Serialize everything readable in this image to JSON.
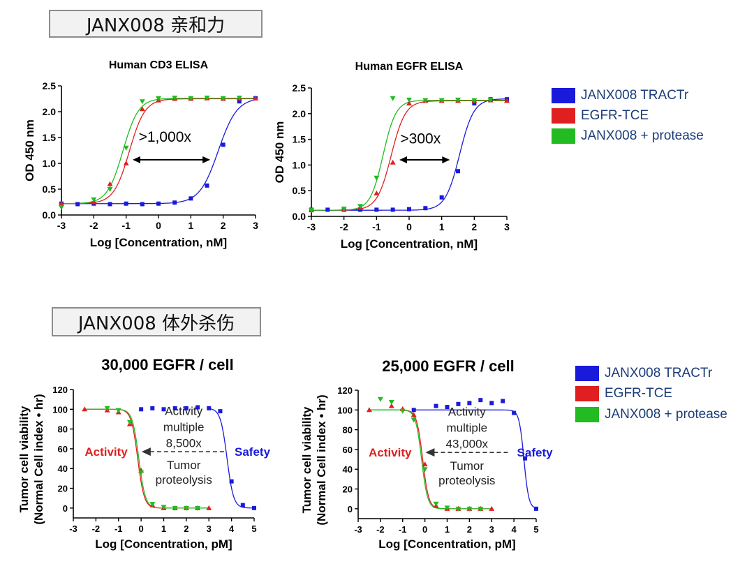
{
  "section1_title": "JANX008 亲和力",
  "section2_title": "JANX008 体外杀伤",
  "colors": {
    "tractr": "#1a1adb",
    "tce": "#e02020",
    "protease": "#22bb22"
  },
  "legend_top": [
    "JANX008 TRACTr",
    "EGFR-TCE",
    "JANX008 + protease"
  ],
  "legend_bottom": [
    "JANX008 TRACTr",
    "EGFR-TCE",
    "JANX008 + protease"
  ],
  "chart_data": [
    {
      "type": "scatter",
      "title": "Human CD3 ELISA",
      "xlabel": "Log [Concentration, nM]",
      "ylabel": "OD 450 nm",
      "xlim": [
        -3,
        3
      ],
      "ylim": [
        0,
        2.5
      ],
      "xticks": [
        "-3",
        "-2",
        "-1",
        "0",
        "1",
        "2",
        "3"
      ],
      "yticks": [
        "0.0",
        "0.5",
        "1.0",
        "1.5",
        "2.0",
        "2.5"
      ],
      "annotation": ">1,000x",
      "series": [
        {
          "name": "JANX008 TRACTr",
          "marker": "square",
          "x": [
            -3,
            -2.5,
            -2,
            -1.5,
            -1,
            -0.5,
            0,
            0.5,
            1,
            1.5,
            2,
            2.5,
            3
          ],
          "y": [
            0.22,
            0.21,
            0.22,
            0.21,
            0.22,
            0.21,
            0.22,
            0.24,
            0.32,
            0.57,
            1.36,
            2.2,
            2.26
          ],
          "fit": {
            "bottom": 0.22,
            "top": 2.27,
            "ec50": 1.85,
            "hill": 1.5
          }
        },
        {
          "name": "EGFR-TCE",
          "marker": "triangle-up",
          "x": [
            -3,
            -2,
            -1.5,
            -1,
            -0.5,
            0,
            0.5,
            1,
            1.5,
            2,
            2.5,
            3
          ],
          "y": [
            0.22,
            0.25,
            0.6,
            1.0,
            2.05,
            2.22,
            2.25,
            2.25,
            2.26,
            2.25,
            2.26,
            2.26
          ],
          "fit": {
            "bottom": 0.22,
            "top": 2.25,
            "ec50": -0.9,
            "hill": 1.8
          }
        },
        {
          "name": "JANX008 + protease",
          "marker": "triangle-down",
          "x": [
            -3,
            -2,
            -1.5,
            -1,
            -0.5,
            0,
            0.5,
            1,
            1.5,
            2,
            2.5
          ],
          "y": [
            0.15,
            0.3,
            0.5,
            1.3,
            2.2,
            2.26,
            2.27,
            2.26,
            2.27,
            2.26,
            2.27
          ],
          "fit": {
            "bottom": 0.22,
            "top": 2.26,
            "ec50": -1.1,
            "hill": 1.8
          }
        }
      ]
    },
    {
      "type": "scatter",
      "title": "Human EGFR ELISA",
      "xlabel": "Log [Concentration, nM]",
      "ylabel": "OD 450 nm",
      "xlim": [
        -3,
        3
      ],
      "ylim": [
        0,
        2.5
      ],
      "xticks": [
        "-3",
        "-2",
        "-1",
        "0",
        "1",
        "2",
        "3"
      ],
      "yticks": [
        "0.0",
        "0.5",
        "1.0",
        "1.5",
        "2.0",
        "2.5"
      ],
      "annotation": ">300x",
      "series": [
        {
          "name": "JANX008 TRACTr",
          "marker": "square",
          "x": [
            -3,
            -2.5,
            -2,
            -1.5,
            -1,
            -0.5,
            0,
            0.5,
            1,
            1.5,
            2,
            2.5,
            3
          ],
          "y": [
            0.13,
            0.13,
            0.13,
            0.13,
            0.13,
            0.13,
            0.14,
            0.16,
            0.37,
            0.88,
            2.2,
            2.28,
            2.28
          ],
          "fit": {
            "bottom": 0.12,
            "top": 2.29,
            "ec50": 1.55,
            "hill": 2.0
          }
        },
        {
          "name": "EGFR-TCE",
          "marker": "triangle-up",
          "x": [
            -3,
            -2,
            -1.5,
            -1,
            -0.5,
            0,
            0.5,
            1,
            1.5,
            2,
            2.5,
            3
          ],
          "y": [
            0.12,
            0.14,
            0.17,
            0.45,
            1.05,
            2.2,
            2.25,
            2.25,
            2.25,
            2.25,
            2.26,
            2.25
          ],
          "fit": {
            "bottom": 0.12,
            "top": 2.25,
            "ec50": -0.55,
            "hill": 2.0
          }
        },
        {
          "name": "JANX008 + protease",
          "marker": "triangle-down",
          "x": [
            -3,
            -2,
            -1.5,
            -1,
            -0.5,
            0,
            0.5,
            1,
            1.5,
            2,
            2.5
          ],
          "y": [
            0.12,
            0.15,
            0.2,
            0.75,
            2.3,
            2.27,
            2.26,
            2.26,
            2.27,
            2.26,
            2.27
          ],
          "fit": {
            "bottom": 0.12,
            "top": 2.26,
            "ec50": -0.8,
            "hill": 2.2
          }
        }
      ]
    },
    {
      "type": "scatter",
      "title": "30,000 EGFR / cell",
      "xlabel": "Log [Concentration, pM]",
      "ylabel_lines": [
        "Tumor cell viability",
        "(Normal Cell index • hr)"
      ],
      "xlim": [
        -3,
        5
      ],
      "ylim": [
        -10,
        120
      ],
      "xticks": [
        "-3",
        "-2",
        "-1",
        "0",
        "1",
        "2",
        "3",
        "4",
        "5"
      ],
      "yticks": [
        "0",
        "20",
        "40",
        "60",
        "80",
        "100",
        "120"
      ],
      "annotation_lines": [
        "Activity",
        "multiple",
        "8,500x"
      ],
      "activity_label": "Activity",
      "safety_label": "Safety",
      "proteolysis_lines": [
        "Tumor",
        "proteolysis"
      ],
      "series": [
        {
          "name": "JANX008 TRACTr",
          "marker": "square",
          "x": [
            0,
            0.5,
            1,
            1.5,
            2,
            2.5,
            3,
            3.5,
            4,
            4.5,
            5
          ],
          "y": [
            100,
            101,
            100,
            101,
            101,
            102,
            101,
            98,
            27,
            3,
            0
          ],
          "fit": {
            "bottom": 0,
            "top": 101,
            "ec50": 3.8,
            "hill": 3.0,
            "xmin": 3
          }
        },
        {
          "name": "EGFR-TCE",
          "marker": "triangle-up",
          "x": [
            -2.5,
            -1.5,
            -1,
            -0.5,
            0,
            0.5,
            1,
            1.5,
            2,
            2.5,
            3
          ],
          "y": [
            100,
            99,
            97,
            85,
            38,
            3,
            0,
            0,
            0,
            0,
            0
          ],
          "fit": {
            "bottom": 0,
            "top": 100,
            "ec50": -0.15,
            "hill": 3.0,
            "xmin": -2.5,
            "xmax": 3
          }
        },
        {
          "name": "JANX008 + protease",
          "marker": "triangle-down",
          "x": [
            -1.5,
            -1,
            -0.5,
            0,
            0.5,
            1,
            1.5,
            2,
            2.5
          ],
          "y": [
            101,
            99,
            87,
            36,
            4,
            1,
            0,
            0,
            0
          ],
          "fit": {
            "bottom": 0,
            "top": 100,
            "ec50": -0.1,
            "hill": 3.0,
            "xmin": -2.5,
            "xmax": 3
          }
        }
      ]
    },
    {
      "type": "scatter",
      "title": "25,000 EGFR / cell",
      "xlabel": "Log [Concentration, pM]",
      "ylabel_lines": [
        "Tumor cell viability",
        "(Normal Cell index • hr)"
      ],
      "xlim": [
        -3,
        5
      ],
      "ylim": [
        -10,
        120
      ],
      "xticks": [
        "-3",
        "-2",
        "-1",
        "0",
        "1",
        "2",
        "3",
        "4",
        "5"
      ],
      "yticks": [
        "0",
        "20",
        "40",
        "60",
        "80",
        "100",
        "120"
      ],
      "annotation_lines": [
        "Activity",
        "multiple",
        "43,000x"
      ],
      "activity_label": "Activity",
      "safety_label": "Safety",
      "proteolysis_lines": [
        "Tumor",
        "proteolysis"
      ],
      "series": [
        {
          "name": "JANX008 TRACTr",
          "marker": "square",
          "x": [
            -0.5,
            0.5,
            1,
            1.5,
            2,
            2.5,
            3,
            3.5,
            4,
            4.5,
            5
          ],
          "y": [
            100,
            104,
            103,
            106,
            107,
            110,
            107,
            109,
            97,
            51,
            0
          ],
          "fit": {
            "bottom": 0,
            "top": 100,
            "ec50": 4.45,
            "hill": 4.0,
            "xmin": -0.5
          }
        },
        {
          "name": "EGFR-TCE",
          "marker": "triangle-up",
          "x": [
            -2.5,
            -1.5,
            -1,
            -0.5,
            0,
            0.5,
            1,
            1.5,
            2,
            2.5,
            3
          ],
          "y": [
            100,
            104,
            101,
            95,
            45,
            3,
            0,
            0,
            0,
            0,
            0
          ],
          "fit": {
            "bottom": 0,
            "top": 100,
            "ec50": -0.1,
            "hill": 3.2,
            "xmin": -2.5,
            "xmax": 3
          }
        },
        {
          "name": "JANX008 + protease",
          "marker": "triangle-down",
          "x": [
            -2,
            -1.5,
            -1,
            -0.5,
            0,
            0.5,
            1,
            1.5,
            2,
            2.5
          ],
          "y": [
            111,
            108,
            99,
            90,
            40,
            5,
            1,
            0,
            0,
            0
          ],
          "fit": {
            "bottom": 0,
            "top": 100,
            "ec50": -0.15,
            "hill": 3.2,
            "xmin": -2.5,
            "xmax": 3
          }
        }
      ]
    }
  ]
}
